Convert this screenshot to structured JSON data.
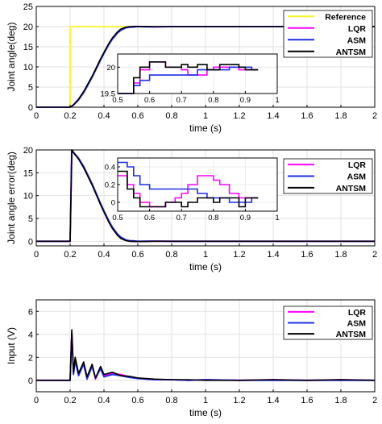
{
  "colors": {
    "Reference": "#f5f528",
    "LQR": "#ff00ff",
    "ASM": "#1f2fe6",
    "ANTSM": "#000000"
  },
  "chart_data": [
    {
      "type": "line",
      "xlabel": "time (s)",
      "ylabel": "Joint angle(deg)",
      "xlim": [
        0,
        2
      ],
      "ylim": [
        0,
        25
      ],
      "xticks": [
        "0",
        "0.2",
        "0.4",
        "0.6",
        "0.8",
        "1",
        "1.2",
        "1.4",
        "1.6",
        "1.8",
        "2"
      ],
      "yticks": [
        "0",
        "5",
        "10",
        "15",
        "20",
        "25"
      ],
      "grid": true,
      "legend_position": "top-right",
      "x": [
        0,
        0.2,
        0.22,
        0.25,
        0.28,
        0.3,
        0.33,
        0.35,
        0.38,
        0.4,
        0.43,
        0.45,
        0.48,
        0.5,
        0.53,
        0.55,
        0.58,
        0.6,
        0.65,
        0.7,
        0.8,
        0.9,
        1.0,
        1.2,
        1.4,
        1.6,
        1.8,
        2.0
      ],
      "series": [
        {
          "name": "Reference",
          "values": [
            0,
            0,
            20,
            20,
            20,
            20,
            20,
            20,
            20,
            20,
            20,
            20,
            20,
            20,
            20,
            20,
            20,
            20,
            20,
            20,
            20,
            20,
            20,
            20,
            20,
            20,
            20,
            20
          ]
        },
        {
          "name": "LQR",
          "values": [
            0,
            0,
            0.6,
            2.0,
            3.8,
            5.3,
            7.6,
            9.3,
            11.9,
            13.5,
            15.8,
            17.1,
            18.6,
            19.3,
            19.8,
            19.95,
            20.05,
            20.05,
            20.0,
            19.95,
            20.0,
            20.0,
            20.0,
            20.0,
            20.0,
            20.0,
            20.0,
            20.0
          ]
        },
        {
          "name": "ASM",
          "values": [
            0,
            0,
            0.5,
            1.8,
            3.6,
            5.1,
            7.4,
            9.1,
            11.7,
            13.3,
            15.6,
            16.9,
            18.4,
            19.1,
            19.7,
            19.85,
            19.9,
            20.0,
            19.95,
            19.95,
            20.0,
            20.0,
            20.0,
            20.0,
            20.0,
            20.0,
            20.0,
            20.0
          ]
        },
        {
          "name": "ANTSM",
          "values": [
            0,
            0,
            0.6,
            2.0,
            3.9,
            5.4,
            7.7,
            9.4,
            12.0,
            13.6,
            15.9,
            17.2,
            18.7,
            19.4,
            19.85,
            20.0,
            20.05,
            20.05,
            20.05,
            20.0,
            20.0,
            20.0,
            20.0,
            20.0,
            20.0,
            20.0,
            20.0,
            20.0
          ]
        }
      ],
      "inset": {
        "xlim": [
          0.5,
          1
        ],
        "ylim": [
          19.5,
          20.25
        ],
        "xticks": [
          "0.5",
          "0.6",
          "0.7",
          "0.8",
          "0.9",
          "1"
        ],
        "yticks": [
          "19.5",
          "20"
        ],
        "x": [
          0.5,
          0.55,
          0.57,
          0.6,
          0.62,
          0.65,
          0.7,
          0.72,
          0.75,
          0.78,
          0.8,
          0.82,
          0.85,
          0.88,
          0.9,
          0.92,
          0.94
        ],
        "series": [
          {
            "name": "LQR",
            "values": [
              19.5,
              19.7,
              19.95,
              20.1,
              20.1,
              20.0,
              19.95,
              19.85,
              19.85,
              19.95,
              20.0,
              20.0,
              20.0,
              19.95,
              19.95,
              19.95,
              19.95
            ]
          },
          {
            "name": "ASM",
            "values": [
              19.5,
              19.65,
              19.75,
              19.85,
              19.85,
              19.85,
              19.85,
              19.85,
              19.95,
              19.95,
              19.95,
              19.95,
              20.0,
              20.0,
              20.0,
              19.95,
              19.95
            ]
          },
          {
            "name": "ANTSM",
            "values": [
              19.5,
              19.8,
              20.0,
              20.1,
              20.1,
              20.0,
              20.05,
              20.0,
              20.05,
              19.95,
              19.95,
              20.05,
              20.05,
              20.0,
              19.95,
              19.95,
              19.95
            ]
          }
        ]
      }
    },
    {
      "type": "line",
      "xlabel": "time (s)",
      "ylabel": "Joint angle error(deg)",
      "xlim": [
        0,
        2
      ],
      "ylim": [
        -1,
        20
      ],
      "xticks": [
        "0",
        "0.2",
        "0.4",
        "0.6",
        "0.8",
        "1",
        "1.2",
        "1.4",
        "1.6",
        "1.8",
        "2"
      ],
      "yticks": [
        "0",
        "5",
        "10",
        "15",
        "20"
      ],
      "grid": true,
      "legend_position": "top-right",
      "x": [
        0,
        0.2,
        0.21,
        0.22,
        0.25,
        0.28,
        0.3,
        0.33,
        0.35,
        0.38,
        0.4,
        0.43,
        0.45,
        0.48,
        0.5,
        0.53,
        0.55,
        0.58,
        0.6,
        0.65,
        0.7,
        0.8,
        0.9,
        1.0,
        1.2,
        1.4,
        1.6,
        1.8,
        2.0
      ],
      "series": [
        {
          "name": "LQR",
          "values": [
            0,
            0,
            20,
            19.4,
            18.0,
            16.2,
            14.7,
            12.4,
            10.7,
            8.1,
            6.5,
            4.2,
            2.9,
            1.4,
            0.7,
            0.2,
            0.05,
            -0.05,
            -0.05,
            0.0,
            0.05,
            0.0,
            0.0,
            0.0,
            0.0,
            0.0,
            0.0,
            0.0,
            0.0
          ]
        },
        {
          "name": "ASM",
          "values": [
            0,
            0,
            20,
            19.5,
            18.2,
            16.4,
            14.9,
            12.6,
            10.9,
            8.3,
            6.7,
            4.4,
            3.1,
            1.6,
            0.9,
            0.3,
            0.15,
            0.1,
            0.0,
            0.05,
            0.05,
            0.0,
            0.0,
            0.0,
            0.0,
            0.0,
            0.0,
            0.0,
            0.0
          ]
        },
        {
          "name": "ANTSM",
          "values": [
            0,
            0,
            20,
            19.4,
            18.0,
            16.1,
            14.6,
            12.3,
            10.6,
            8.0,
            6.4,
            4.1,
            2.8,
            1.3,
            0.6,
            0.15,
            0.0,
            -0.05,
            -0.05,
            -0.05,
            0.0,
            0.0,
            0.0,
            0.0,
            0.0,
            0.0,
            0.0,
            0.0,
            0.0
          ]
        }
      ],
      "inset": {
        "xlim": [
          0.5,
          1
        ],
        "ylim": [
          -0.1,
          0.5
        ],
        "xticks": [
          "0.5",
          "0.6",
          "0.7",
          "0.8",
          "0.9",
          "1"
        ],
        "yticks": [
          "0",
          "0.2",
          "0.4"
        ],
        "ytick_values": [
          0,
          0.2,
          0.4
        ],
        "x": [
          0.5,
          0.53,
          0.55,
          0.57,
          0.6,
          0.62,
          0.65,
          0.68,
          0.7,
          0.72,
          0.75,
          0.78,
          0.8,
          0.82,
          0.85,
          0.88,
          0.9,
          0.92,
          0.94
        ],
        "series": [
          {
            "name": "LQR",
            "values": [
              0.3,
              0.2,
              0.1,
              0.0,
              -0.05,
              -0.05,
              0.0,
              0.05,
              0.1,
              0.2,
              0.3,
              0.3,
              0.25,
              0.2,
              0.1,
              0.05,
              0.05,
              0.05,
              0.05
            ]
          },
          {
            "name": "ASM",
            "values": [
              0.45,
              0.4,
              0.3,
              0.2,
              0.15,
              0.15,
              0.15,
              0.15,
              0.15,
              0.15,
              0.1,
              0.05,
              0.05,
              0.05,
              0.0,
              0.0,
              0.0,
              0.05,
              0.05
            ]
          },
          {
            "name": "ANTSM",
            "values": [
              0.35,
              0.15,
              0.05,
              -0.05,
              -0.05,
              -0.05,
              0.0,
              0.0,
              -0.05,
              0.0,
              0.05,
              0.05,
              0.0,
              0.05,
              0.05,
              -0.05,
              0.05,
              0.05,
              0.05
            ]
          }
        ]
      }
    },
    {
      "type": "line",
      "xlabel": "time (s)",
      "ylabel": "Input (V)",
      "xlim": [
        0,
        2
      ],
      "ylim": [
        -1,
        7
      ],
      "xticks": [
        "0",
        "0.2",
        "0.4",
        "0.6",
        "0.8",
        "1",
        "1.2",
        "1.4",
        "1.6",
        "1.8",
        "2"
      ],
      "yticks": [
        "0",
        "2",
        "4",
        "6"
      ],
      "grid": true,
      "legend_position": "top-right",
      "x": [
        0,
        0.2,
        0.21,
        0.22,
        0.23,
        0.25,
        0.28,
        0.3,
        0.33,
        0.35,
        0.38,
        0.4,
        0.45,
        0.5,
        0.55,
        0.6,
        0.65,
        0.7,
        0.8,
        0.9,
        1.0,
        1.2,
        1.4,
        1.6,
        1.8,
        2.0
      ],
      "series": [
        {
          "name": "LQR",
          "values": [
            0,
            0,
            4.2,
            0.6,
            1.9,
            0.5,
            1.5,
            0.2,
            1.3,
            0.1,
            1.1,
            0.4,
            0.6,
            0.5,
            0.3,
            0.2,
            0.1,
            0.05,
            0.05,
            0.0,
            0.05,
            0.0,
            0.05,
            0.0,
            0.05,
            0.0
          ]
        },
        {
          "name": "ASM",
          "values": [
            0,
            0,
            4.0,
            0.5,
            1.7,
            0.4,
            1.4,
            0.1,
            1.2,
            0.2,
            1.0,
            0.3,
            0.5,
            0.4,
            0.25,
            0.15,
            0.1,
            0.05,
            0.05,
            0.0,
            0.05,
            0.0,
            0.0,
            0.0,
            0.0,
            0.0
          ]
        },
        {
          "name": "ANTSM",
          "values": [
            0,
            0,
            4.4,
            0.7,
            2.0,
            0.6,
            1.6,
            0.3,
            1.4,
            0.2,
            1.2,
            0.5,
            0.7,
            0.4,
            0.35,
            0.2,
            0.15,
            0.1,
            0.05,
            0.05,
            0.0,
            0.0,
            0.05,
            0.0,
            0.05,
            0.0
          ]
        }
      ]
    }
  ]
}
